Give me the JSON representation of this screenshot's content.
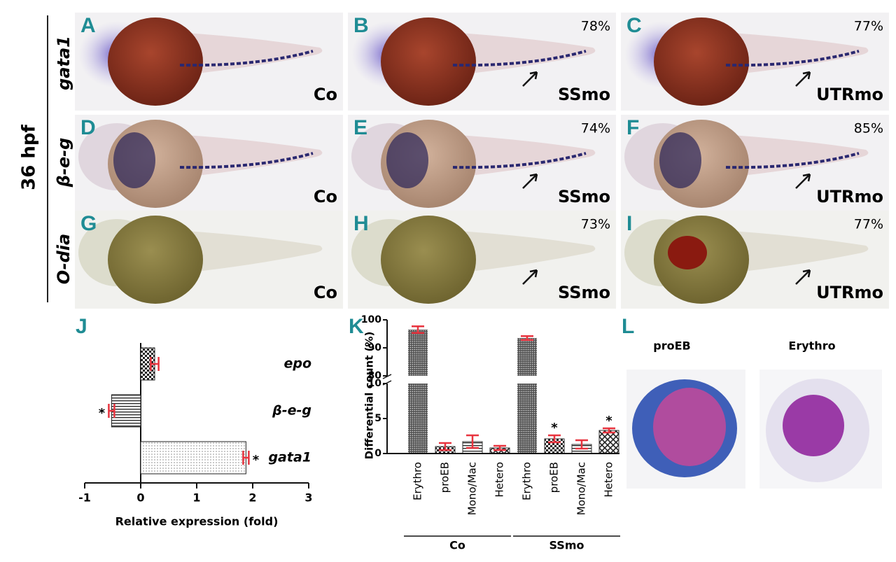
{
  "figure": {
    "stage": "36 hpf",
    "row_labels": [
      "gata1",
      "β-e-g",
      "O-dia"
    ],
    "panels": [
      {
        "letter": "A",
        "label": "Co"
      },
      {
        "letter": "B",
        "label": "SSmo",
        "percent": "78%"
      },
      {
        "letter": "C",
        "label": "UTRmo",
        "percent": "77%"
      },
      {
        "letter": "D",
        "label": "Co"
      },
      {
        "letter": "E",
        "label": "SSmo",
        "percent": "74%"
      },
      {
        "letter": "F",
        "label": "UTRmo",
        "percent": "85%"
      },
      {
        "letter": "G",
        "label": "Co"
      },
      {
        "letter": "H",
        "label": "SSmo",
        "percent": "73%"
      },
      {
        "letter": "I",
        "label": "UTRmo",
        "percent": "77%"
      }
    ],
    "cells": {
      "letter": "L",
      "labels": [
        "proEB",
        "Erythro"
      ]
    }
  },
  "chart_data": [
    {
      "type": "hbar",
      "letter": "J",
      "categories": [
        "epo",
        "β-e-g",
        "gata1"
      ],
      "values": [
        0.25,
        -0.52,
        1.88
      ],
      "errors": [
        0.07,
        0.05,
        0.05
      ],
      "significance": [
        null,
        "*",
        "*"
      ],
      "xlim": [
        -1,
        3
      ],
      "xticks": [
        -1,
        0,
        1,
        2,
        3
      ],
      "xlabel": "Relative expression (fold)",
      "error_color": "#e8343f"
    },
    {
      "type": "broken-bar",
      "letter": "K",
      "categories": [
        "Erythro",
        "proEB",
        "Mono/Mac",
        "Hetero",
        "Erythro",
        "proEB",
        "Mono/Mac",
        "Hetero"
      ],
      "groups": [
        "Co",
        "SSmo"
      ],
      "values": [
        96.5,
        1.0,
        1.7,
        0.8,
        93.5,
        2.1,
        1.3,
        3.3
      ],
      "errors": [
        1.2,
        0.5,
        0.9,
        0.3,
        0.7,
        0.5,
        0.6,
        0.3
      ],
      "significance": [
        null,
        null,
        null,
        null,
        null,
        "*",
        null,
        "*"
      ],
      "ylim_lower": [
        0,
        10
      ],
      "ylim_upper": [
        80,
        100
      ],
      "yticks": [
        0,
        5,
        10,
        80,
        90,
        100
      ],
      "ylabel": "Differential count (%)",
      "error_color": "#e8343f"
    }
  ]
}
